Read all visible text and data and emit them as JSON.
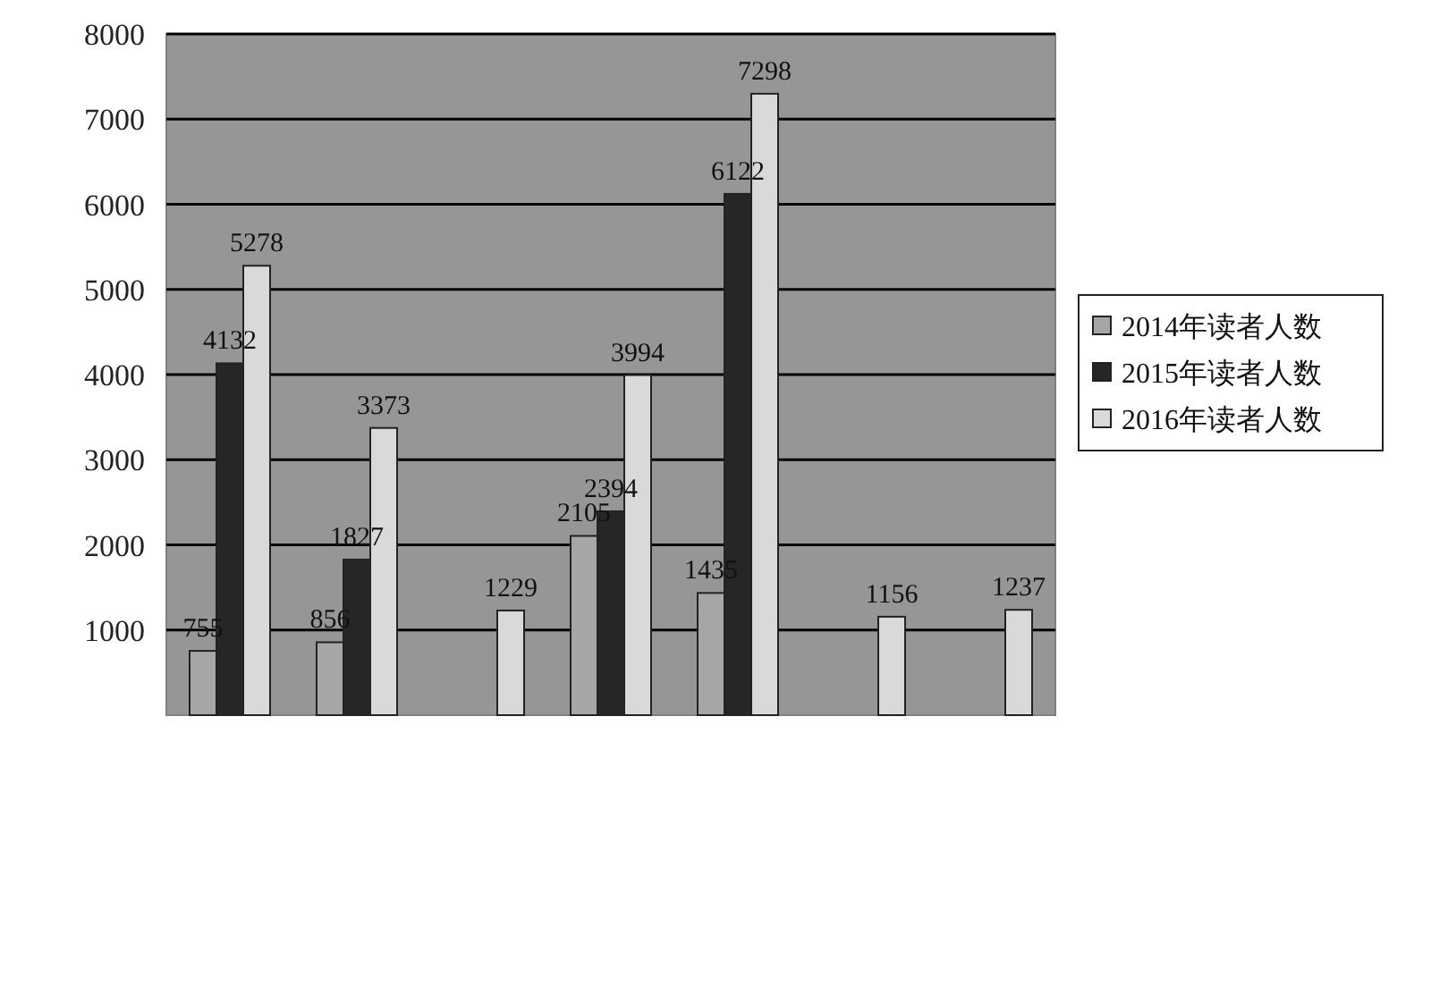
{
  "chart_data": {
    "type": "bar",
    "categories": [
      null,
      null,
      null,
      null,
      null,
      null,
      null
    ],
    "series": [
      {
        "name": "2014年读者人数",
        "color": "#a6a6a6",
        "values": [
          755,
          856,
          null,
          2105,
          1435,
          null,
          null
        ]
      },
      {
        "name": "2015年读者人数",
        "color": "#262626",
        "values": [
          4132,
          1827,
          null,
          2394,
          6122,
          null,
          null
        ]
      },
      {
        "name": "2016年读者人数",
        "color": "#d9d9d9",
        "values": [
          5278,
          3373,
          1229,
          3994,
          7298,
          1156,
          1237
        ]
      }
    ],
    "ylim": [
      0,
      8000
    ],
    "yticks": [
      1000,
      2000,
      3000,
      4000,
      5000,
      6000,
      7000,
      8000
    ],
    "grid": "y",
    "legend": "right",
    "data_labels": true
  }
}
